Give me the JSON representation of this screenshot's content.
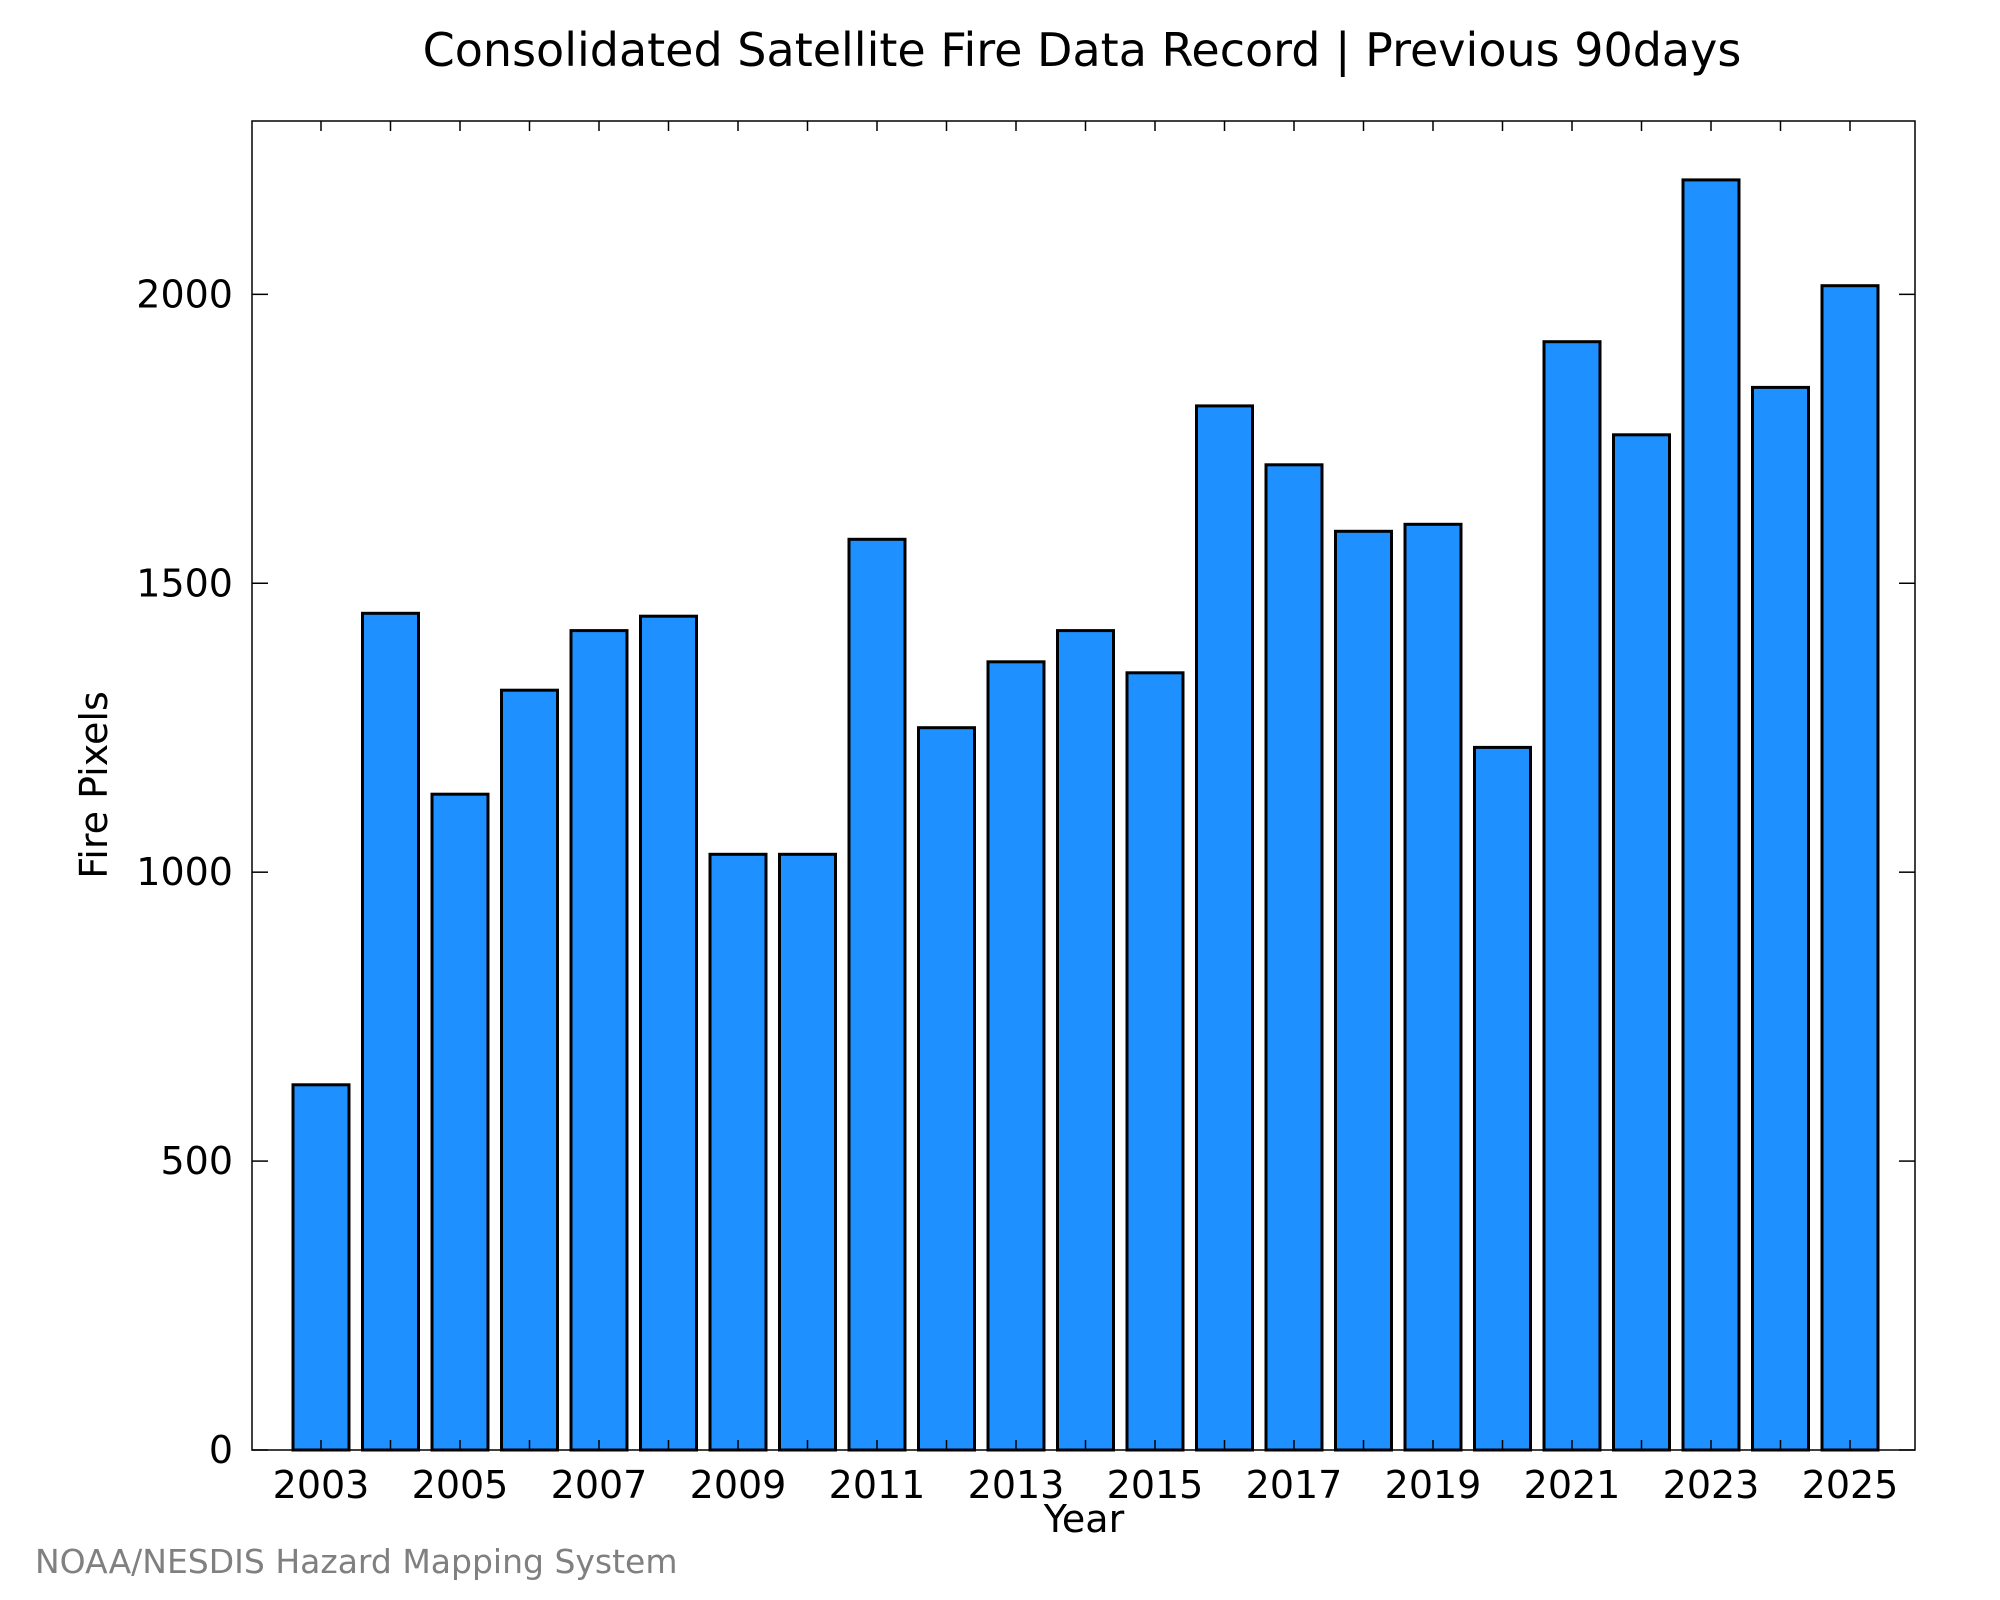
{
  "chart_data": {
    "type": "bar",
    "title": "Consolidated Satellite Fire Data Record | Previous 90days",
    "xlabel": "Year",
    "ylabel": "Fire Pixels",
    "categories": [
      "2003",
      "2004",
      "2005",
      "2006",
      "2007",
      "2008",
      "2009",
      "2010",
      "2011",
      "2012",
      "2013",
      "2014",
      "2015",
      "2016",
      "2017",
      "2018",
      "2019",
      "2020",
      "2021",
      "2022",
      "2023",
      "2024",
      "2025"
    ],
    "x_tick_labels": [
      "2003",
      "2005",
      "2007",
      "2009",
      "2011",
      "2013",
      "2015",
      "2017",
      "2019",
      "2021",
      "2023",
      "2025"
    ],
    "y_tick_values": [
      0,
      500,
      1000,
      1500,
      2000
    ],
    "y_tick_labels": [
      "0",
      "500",
      "1000",
      "1500",
      "2000"
    ],
    "series": [
      {
        "values": [
          632,
          1448,
          1135,
          1315,
          1418,
          1443,
          1031,
          1031,
          1576,
          1250,
          1364,
          1418,
          1345,
          1807,
          1705,
          1590,
          1602,
          1216,
          1918,
          1757,
          2198,
          1839,
          2015
        ]
      }
    ],
    "ylim": [
      0,
      2300
    ],
    "grid": false,
    "bar_color": "#1e90ff",
    "bar_edge_color": "#000000"
  },
  "footer": {
    "credit": "NOAA/NESDIS Hazard Mapping System"
  }
}
